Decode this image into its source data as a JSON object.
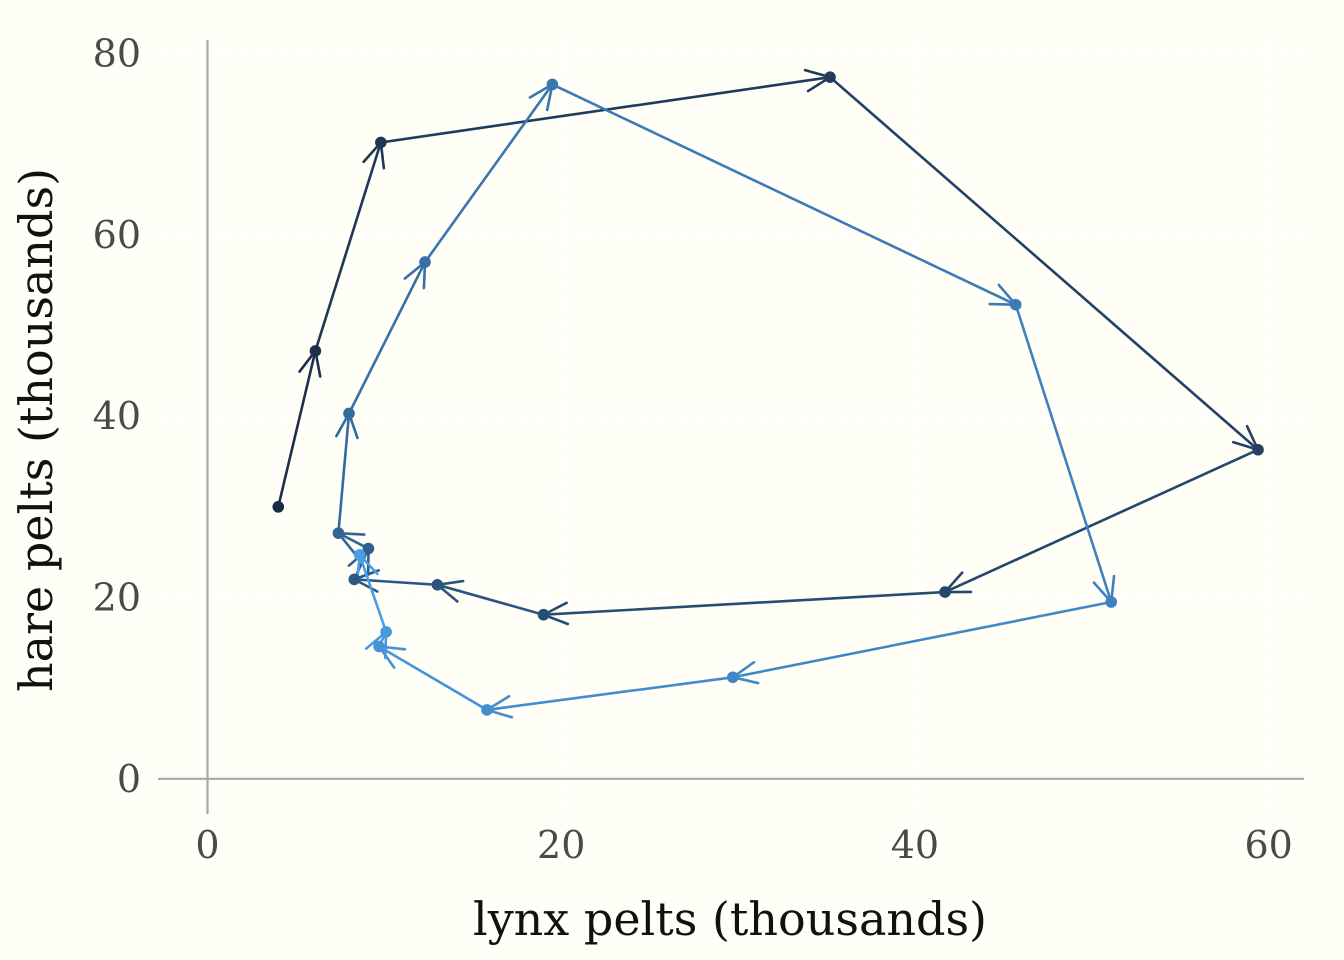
{
  "chart_data": {
    "type": "line",
    "title": "",
    "xlabel": "lynx pelts (thousands)",
    "ylabel": "hare pelts (thousands)",
    "xlim": [
      -2.8,
      62
    ],
    "ylim": [
      -3,
      81.5
    ],
    "xticks": [
      0,
      20,
      40,
      60
    ],
    "yticks": [
      0,
      20,
      40,
      60,
      80
    ],
    "grid": true,
    "legend": "none",
    "marker": "dot",
    "arrows": true,
    "color_gradient": [
      "#1a2a44",
      "#4a9ee8"
    ],
    "points": [
      {
        "x": 4.0,
        "y": 30.0
      },
      {
        "x": 6.1,
        "y": 47.2
      },
      {
        "x": 9.8,
        "y": 70.2
      },
      {
        "x": 35.2,
        "y": 77.4
      },
      {
        "x": 59.4,
        "y": 36.3
      },
      {
        "x": 41.7,
        "y": 20.6
      },
      {
        "x": 19.0,
        "y": 18.1
      },
      {
        "x": 13.0,
        "y": 21.4
      },
      {
        "x": 8.3,
        "y": 22.0
      },
      {
        "x": 9.1,
        "y": 25.4
      },
      {
        "x": 7.4,
        "y": 27.1
      },
      {
        "x": 8.0,
        "y": 40.3
      },
      {
        "x": 12.3,
        "y": 57.0
      },
      {
        "x": 19.5,
        "y": 76.6
      },
      {
        "x": 45.7,
        "y": 52.3
      },
      {
        "x": 51.1,
        "y": 19.5
      },
      {
        "x": 29.7,
        "y": 11.2
      },
      {
        "x": 15.8,
        "y": 7.6
      },
      {
        "x": 9.7,
        "y": 14.6
      },
      {
        "x": 10.1,
        "y": 16.2
      },
      {
        "x": 8.6,
        "y": 24.7
      }
    ]
  }
}
